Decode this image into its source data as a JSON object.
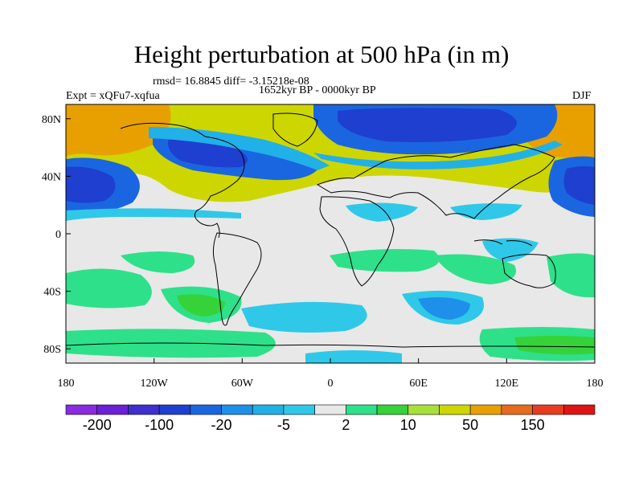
{
  "title": "Height perturbation at 500 hPa (in m)",
  "stats": "rmsd= 16.8845 diff= -3.15218e-08",
  "subtitle": "1652kyr BP - 0000kyr BP",
  "left_label": "Expt = xQFu7-xqfua",
  "right_label": "DJF",
  "lat_ticks": [
    "80N",
    "40N",
    "0",
    "40S",
    "80S"
  ],
  "lon_ticks": [
    "180",
    "120W",
    "60W",
    "0",
    "60E",
    "120E",
    "180"
  ],
  "colorbar": {
    "colors": [
      "#8a2be2",
      "#6a1fd8",
      "#3f2fd0",
      "#1f3fd0",
      "#1a66e0",
      "#1e90ea",
      "#22b0e8",
      "#30c8e8",
      "#e8e8e8",
      "#2ee08a",
      "#36d23a",
      "#a8e03a",
      "#cdd600",
      "#e8a000",
      "#e86a1e",
      "#e83c1e",
      "#e01414"
    ],
    "labels": [
      "-200",
      "-100",
      "-20",
      "-5",
      "2",
      "10",
      "50",
      "150"
    ]
  },
  "colors": {
    "strong_neg": "#1f3fd0",
    "neg": "#1a66e0",
    "light_neg": "#30c8e8",
    "neutral": "#e8e8e8",
    "light_pos": "#2ee08a",
    "pos": "#a8e03a",
    "strong_pos": "#cdd600",
    "warm": "#e8a000"
  }
}
